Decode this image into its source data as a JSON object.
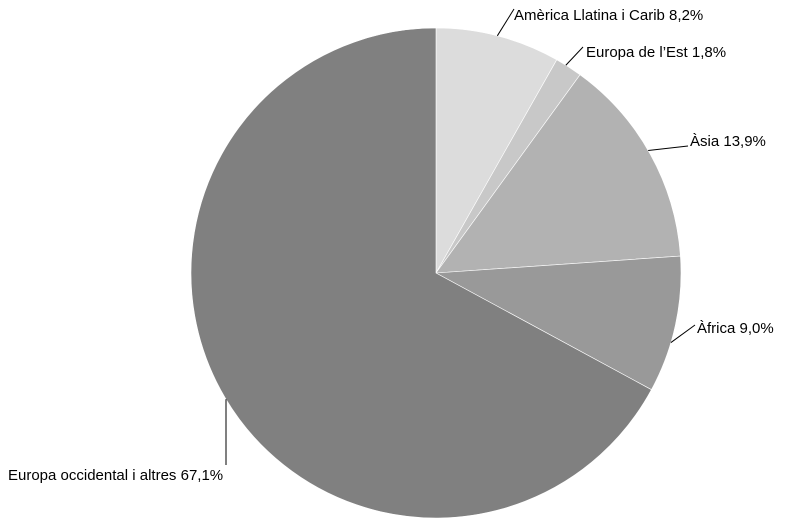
{
  "chart_data": {
    "type": "pie",
    "title": "",
    "slices": [
      {
        "label": "Amèrica Llatina i Carib 8,2%",
        "category": "Amèrica Llatina i Carib",
        "value": 8.2,
        "color": "#dcdcdc"
      },
      {
        "label": "Europa de l’Est 1,8%",
        "category": "Europa de l’Est",
        "value": 1.8,
        "color": "#c8c8c8"
      },
      {
        "label": "Àsia 13,9%",
        "category": "Àsia",
        "value": 13.9,
        "color": "#b2b2b2"
      },
      {
        "label": "Àfrica 9,0%",
        "category": "Àfrica",
        "value": 9.0,
        "color": "#999999"
      },
      {
        "label": "Europa occidental i altres 67,1%",
        "category": "Europa occidental i altres",
        "value": 67.1,
        "color": "#808080"
      }
    ],
    "start_angle": "12 o'clock",
    "direction": "clockwise",
    "legend": "none"
  }
}
